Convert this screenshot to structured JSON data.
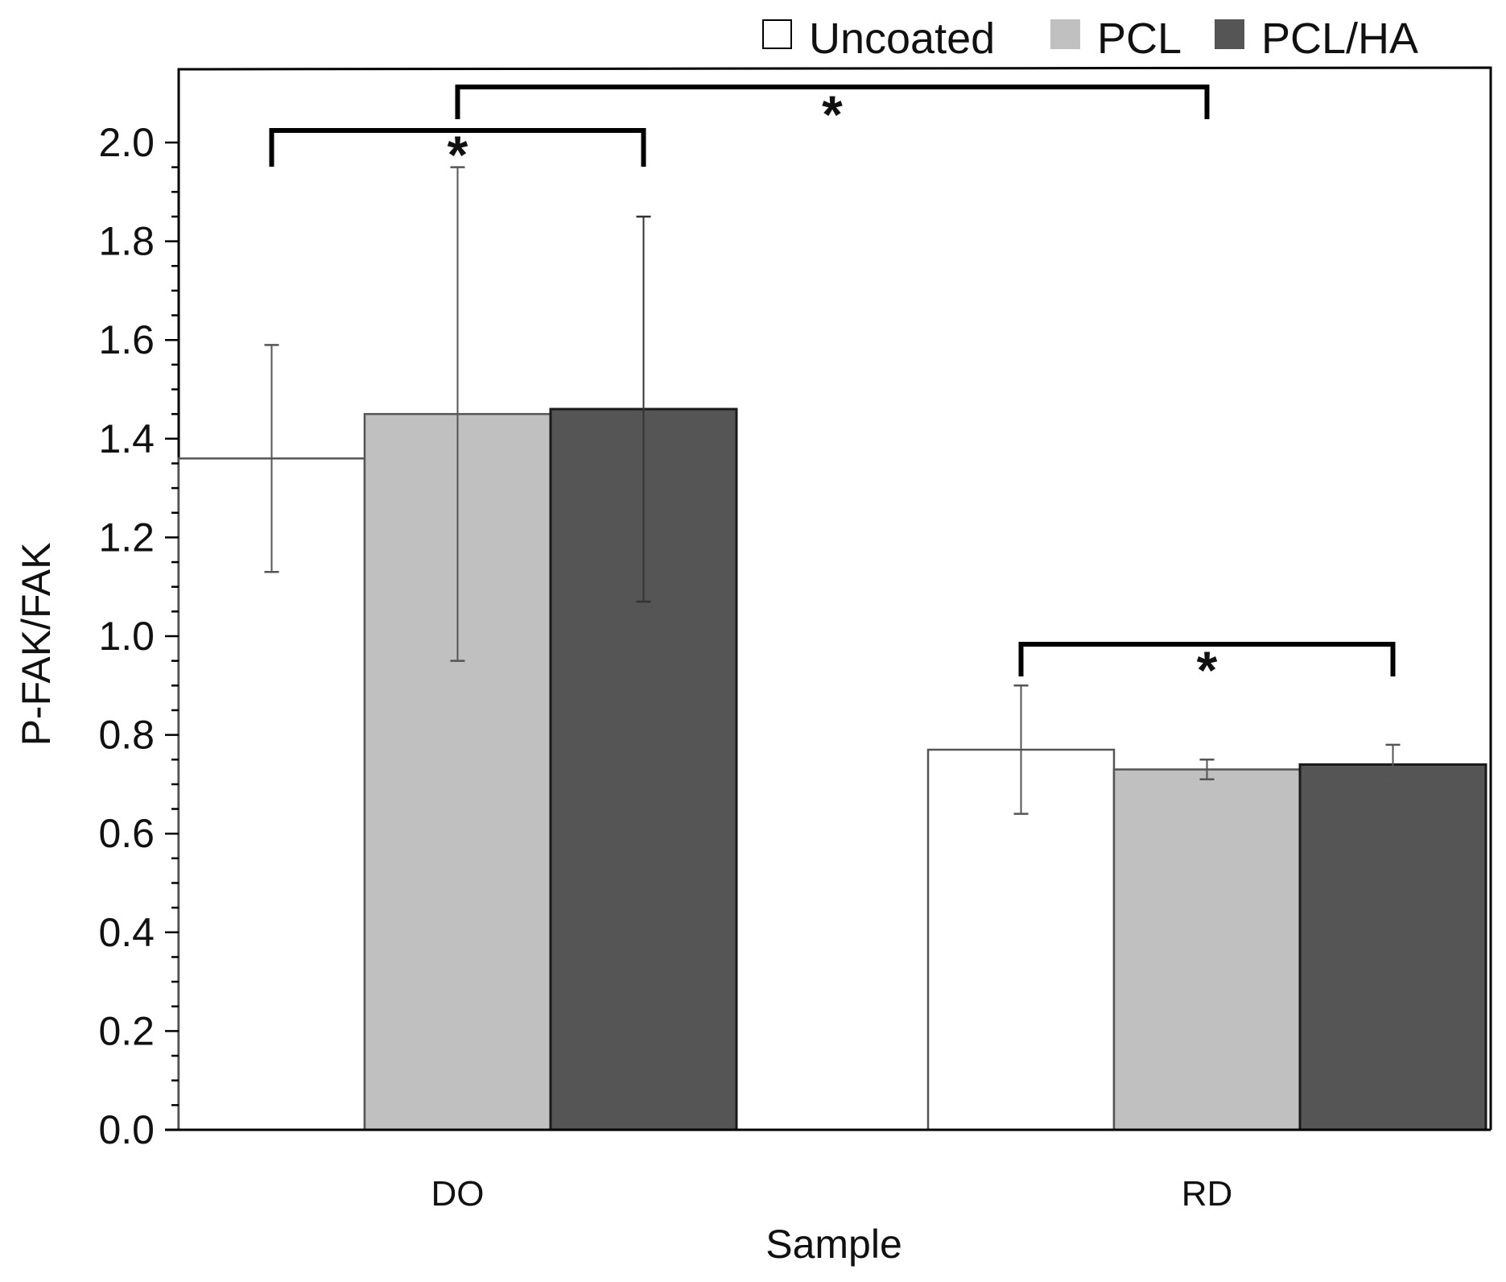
{
  "chart_data": {
    "type": "bar",
    "xlabel": "Sample",
    "ylabel": "P-FAK/FAK",
    "ylim": [
      0,
      2.0
    ],
    "ytick_labels": [
      "0.0",
      "0.2",
      "0.4",
      "0.6",
      "0.8",
      "1.0",
      "1.2",
      "1.4",
      "1.6",
      "1.8",
      "2.0"
    ],
    "categories": [
      "DO",
      "RD"
    ],
    "legend_position": "top-right",
    "grid": false,
    "series": [
      {
        "name": "Uncoated",
        "color": "#ffffff",
        "values": [
          1.36,
          0.77
        ],
        "errors": [
          0.23,
          0.13
        ]
      },
      {
        "name": "PCL",
        "color": "#c0c0c0",
        "values": [
          1.45,
          0.73
        ],
        "errors": [
          0.5,
          0.02
        ]
      },
      {
        "name": "PCL/HA",
        "color": "#555555",
        "values": [
          1.46,
          0.74
        ],
        "errors": [
          0.39,
          0.04
        ]
      }
    ],
    "significance": [
      {
        "label": "*",
        "from": [
          0,
          0
        ],
        "to": [
          0,
          2
        ]
      },
      {
        "label": "*",
        "from": [
          0,
          1
        ],
        "to": [
          1,
          1
        ]
      },
      {
        "label": "*",
        "from": [
          1,
          0
        ],
        "to": [
          1,
          2
        ]
      }
    ]
  }
}
